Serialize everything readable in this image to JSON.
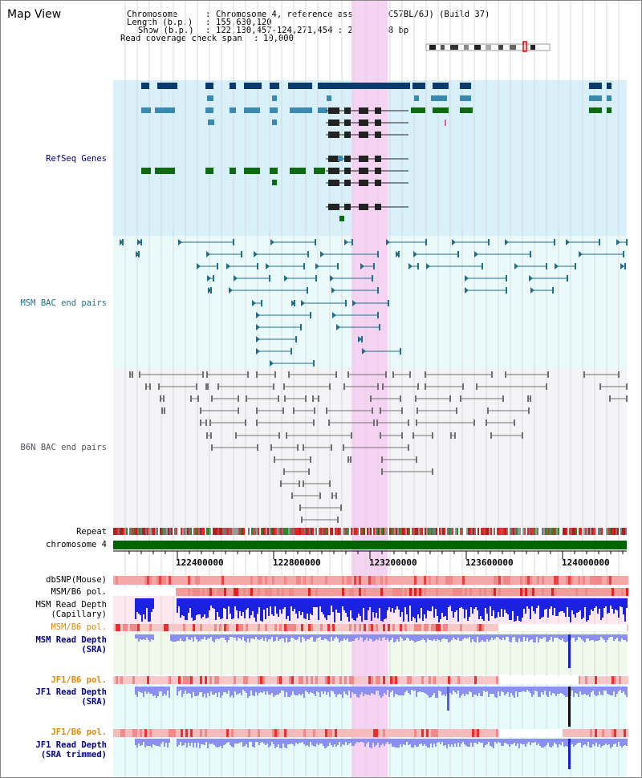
{
  "page": {
    "title": "Map View"
  },
  "info": {
    "chromosome_key": "Chromosome",
    "chromosome_val": "Chromosome 4, reference assembly (C57BL/6J) (Build 37)",
    "length_key": "Length (b.p.)",
    "length_val": "155,630,120",
    "show_key": "Show (b.p.)",
    "show_val": "122,130,457-124,271,454 : 2,140,998 bp",
    "coverage_key": "Read coverage check span",
    "coverage_val": "10,000"
  },
  "tracks": {
    "refseq": "RefSeq Genes",
    "msm_bac": "MSM BAC end pairs",
    "b6n_bac": "B6N BAC end pairs",
    "repeat": "Repeat",
    "chromosome": "chromosome 4",
    "dbsnp": "dbSNP(Mouse)",
    "msm_b6_pol_1": "MSM/B6 pol.",
    "msm_depth_cap_1": "MSM Read Depth",
    "msm_depth_cap_2": "(Capillary)",
    "msm_b6_pol_2": "MSM/B6 pol.",
    "msm_depth_sra_1": "MSM Read Depth",
    "msm_depth_sra_2": "(SRA)",
    "jf1_b6_pol_1": "JF1/B6 pol.",
    "jf1_depth_sra_1": "JF1 Read Depth",
    "jf1_depth_sra_2": "(SRA)",
    "jf1_b6_pol_2": "JF1/B6 pol.",
    "jf1_depth_trim_1": "JF1 Read Depth",
    "jf1_depth_trim_2": "(SRA trimmed)"
  },
  "axis": {
    "ticks": [
      "122400000",
      "122800000",
      "123200000",
      "123600000",
      "124000000"
    ]
  },
  "colors": {
    "refseq_bg": "#d8f0fa",
    "msm_bg": "#eafafa",
    "b6n_bg": "#f4f4f6",
    "highlight": "#f6d3f2",
    "refseq_dark": "#0b3a6e",
    "refseq_mid": "#3a89b0",
    "refseq_green": "#0d6b0d",
    "msm_pair": "#1e6f8a",
    "b6n_pair": "#707070",
    "chromosome_bar": "#006400",
    "blue_depth": "#1a22e0",
    "light_depth": "#8a8ff0",
    "pol_red": "#e83030",
    "label_navy": "#000080",
    "label_orange": "#e08a00",
    "label_teal": "#1e6f8a"
  }
}
